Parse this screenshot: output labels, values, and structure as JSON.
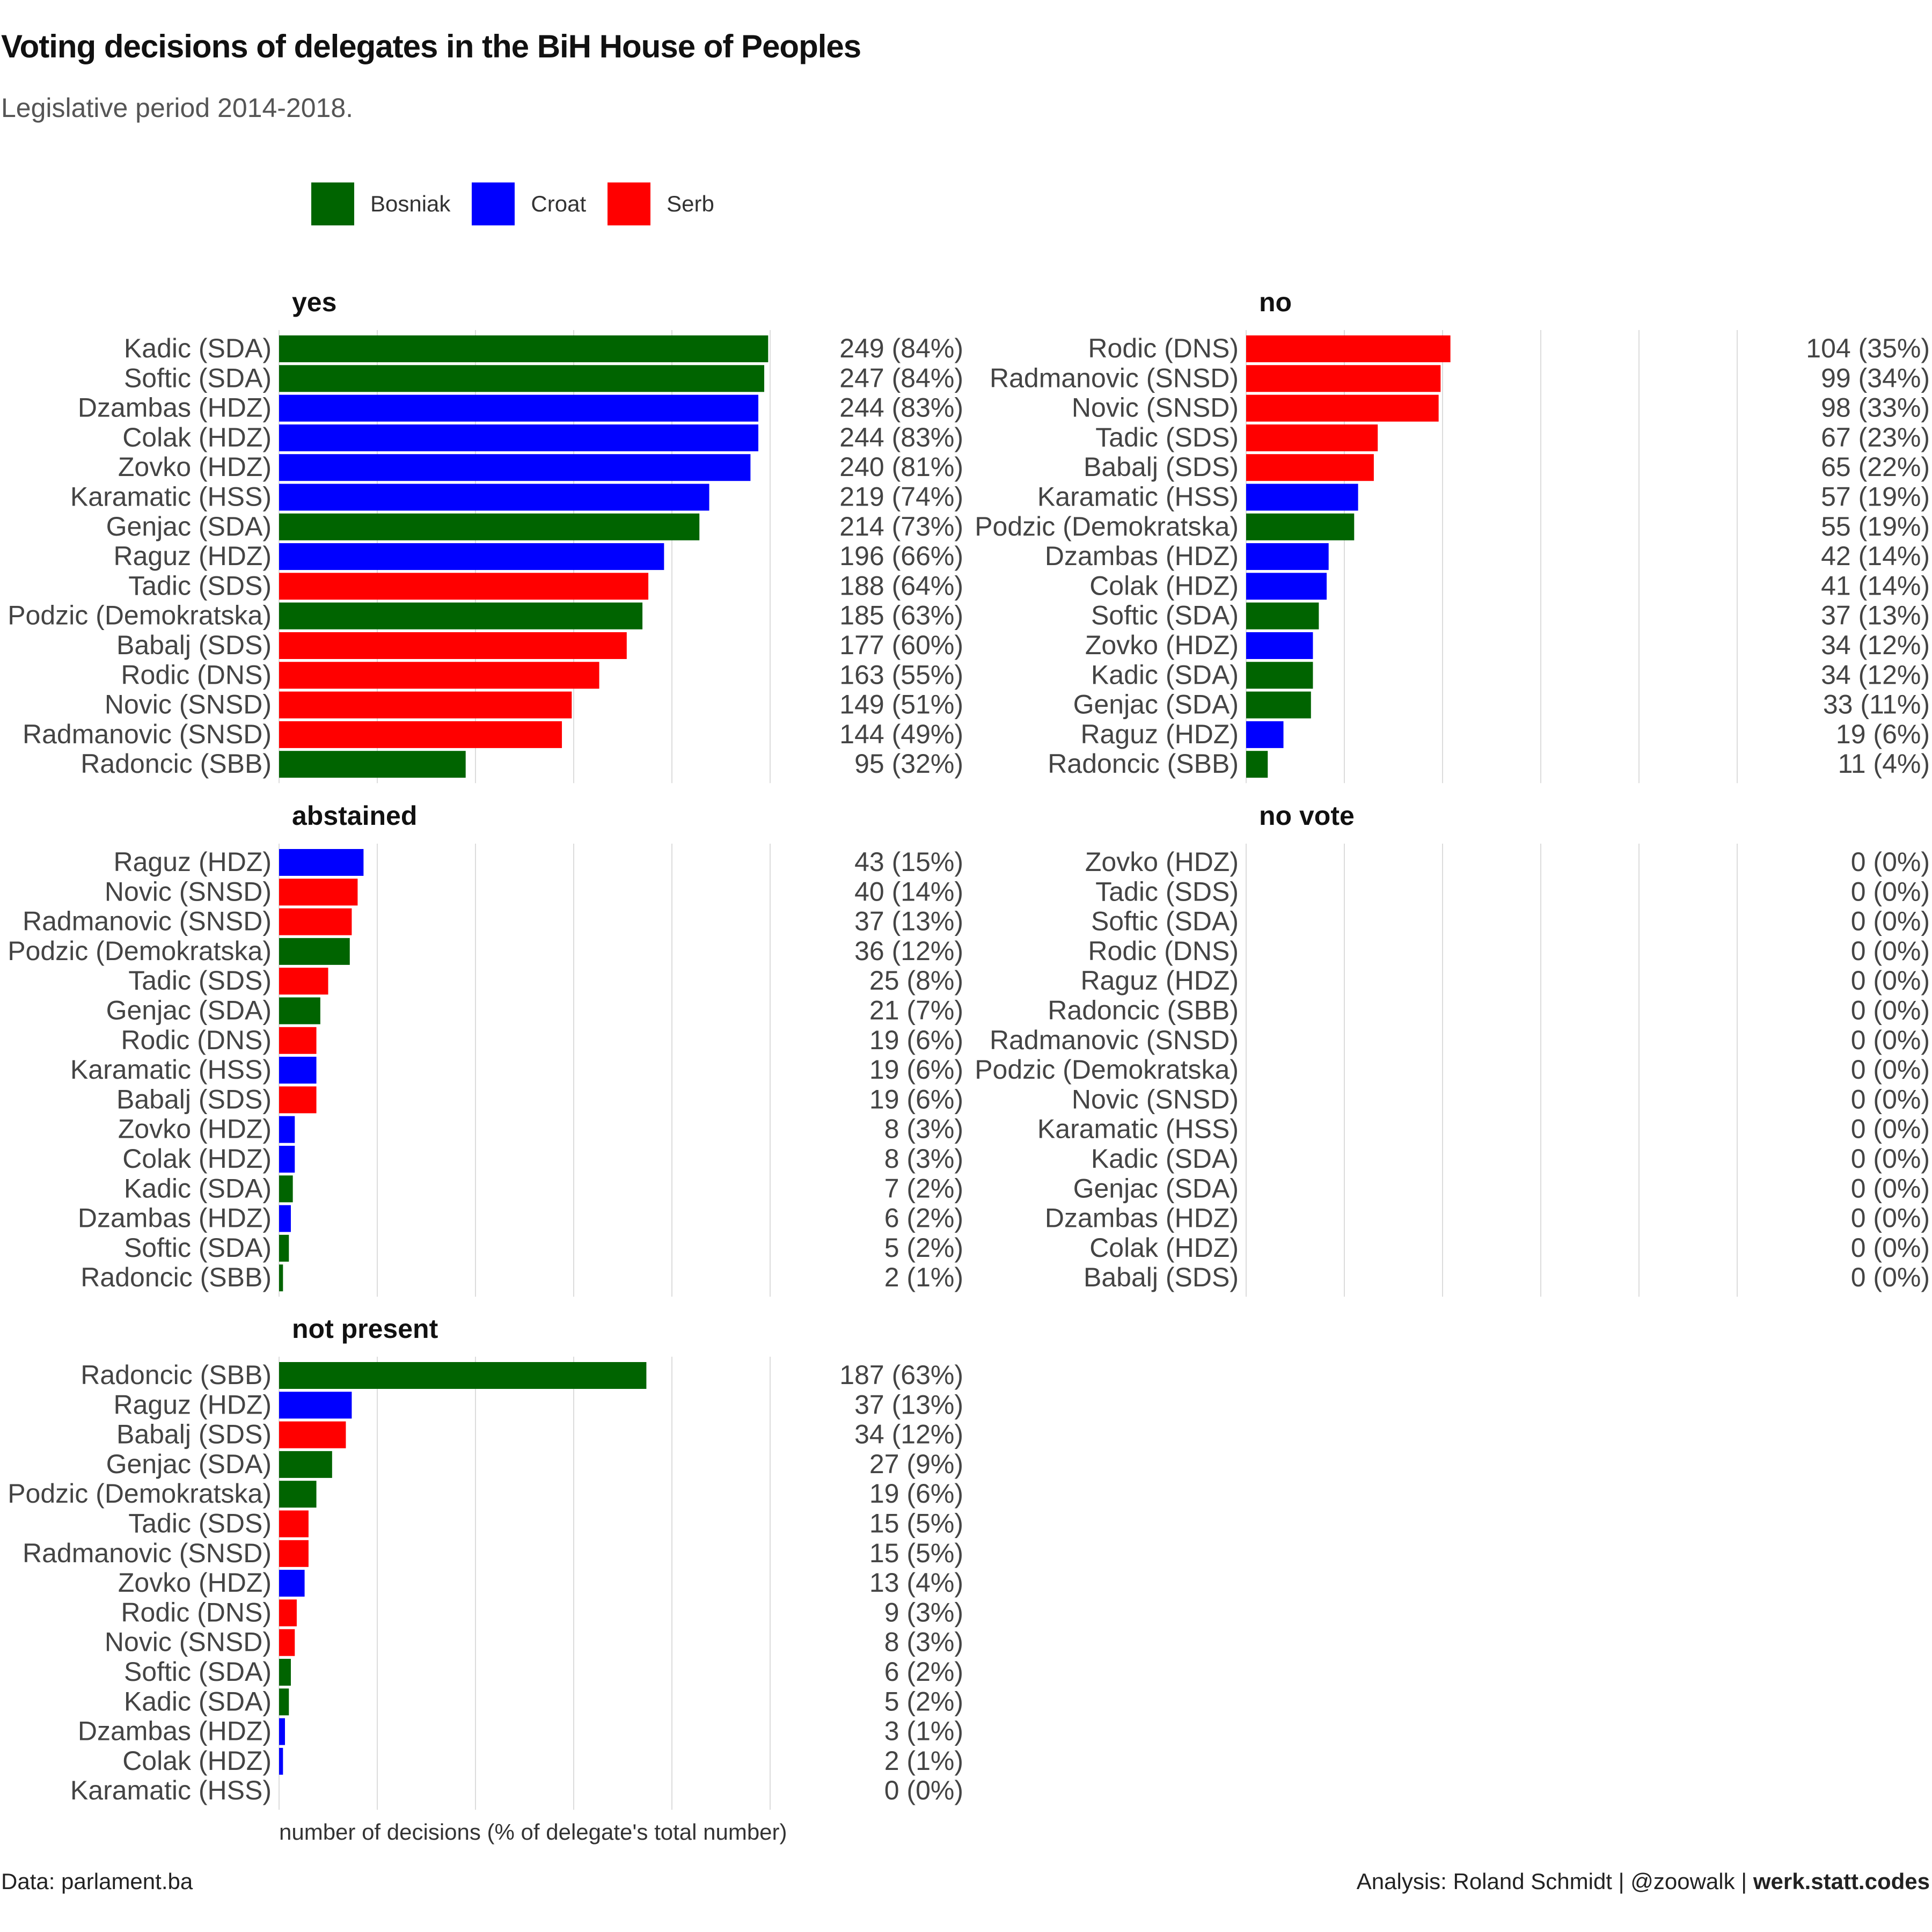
{
  "title": "Voting decisions of delegates in the BiH House of Peoples",
  "subtitle": "Legislative period 2014-2018.",
  "legend": [
    {
      "label": "Bosniak",
      "color": "#006400"
    },
    {
      "label": "Croat",
      "color": "#0000FF"
    },
    {
      "label": "Serb",
      "color": "#FF0000"
    }
  ],
  "footer": {
    "source": "Data: parlament.ba",
    "credit_prefix": "Analysis: Roland Schmidt | @zoowalk | ",
    "credit_bold": "werk.statt.codes"
  },
  "chart_data": {
    "type": "bar",
    "orientation": "horizontal",
    "xlabel": "number of decisions (% of delegate's total number)",
    "xlim": [
      0,
      250
    ],
    "grid": true,
    "legend_position": "top",
    "colors": {
      "Bosniak": "#006400",
      "Croat": "#0000FF",
      "Serb": "#FF0000"
    },
    "panels": [
      {
        "name": "yes",
        "rows": [
          {
            "delegate": "Kadic (SDA)",
            "group": "Bosniak",
            "value": 249,
            "label": "249 (84%)"
          },
          {
            "delegate": "Softic (SDA)",
            "group": "Bosniak",
            "value": 247,
            "label": "247 (84%)"
          },
          {
            "delegate": "Dzambas (HDZ)",
            "group": "Croat",
            "value": 244,
            "label": "244 (83%)"
          },
          {
            "delegate": "Colak (HDZ)",
            "group": "Croat",
            "value": 244,
            "label": "244 (83%)"
          },
          {
            "delegate": "Zovko (HDZ)",
            "group": "Croat",
            "value": 240,
            "label": "240 (81%)"
          },
          {
            "delegate": "Karamatic (HSS)",
            "group": "Croat",
            "value": 219,
            "label": "219 (74%)"
          },
          {
            "delegate": "Genjac (SDA)",
            "group": "Bosniak",
            "value": 214,
            "label": "214 (73%)"
          },
          {
            "delegate": "Raguz (HDZ)",
            "group": "Croat",
            "value": 196,
            "label": "196 (66%)"
          },
          {
            "delegate": "Tadic (SDS)",
            "group": "Serb",
            "value": 188,
            "label": "188 (64%)"
          },
          {
            "delegate": "Podzic (Demokratska)",
            "group": "Bosniak",
            "value": 185,
            "label": "185 (63%)"
          },
          {
            "delegate": "Babalj (SDS)",
            "group": "Serb",
            "value": 177,
            "label": "177 (60%)"
          },
          {
            "delegate": "Rodic (DNS)",
            "group": "Serb",
            "value": 163,
            "label": "163 (55%)"
          },
          {
            "delegate": "Novic (SNSD)",
            "group": "Serb",
            "value": 149,
            "label": "149 (51%)"
          },
          {
            "delegate": "Radmanovic (SNSD)",
            "group": "Serb",
            "value": 144,
            "label": "144 (49%)"
          },
          {
            "delegate": "Radoncic (SBB)",
            "group": "Bosniak",
            "value": 95,
            "label": "95 (32%)"
          }
        ]
      },
      {
        "name": "no",
        "rows": [
          {
            "delegate": "Rodic (DNS)",
            "group": "Serb",
            "value": 104,
            "label": "104 (35%)"
          },
          {
            "delegate": "Radmanovic (SNSD)",
            "group": "Serb",
            "value": 99,
            "label": "99 (34%)"
          },
          {
            "delegate": "Novic (SNSD)",
            "group": "Serb",
            "value": 98,
            "label": "98 (33%)"
          },
          {
            "delegate": "Tadic (SDS)",
            "group": "Serb",
            "value": 67,
            "label": "67 (23%)"
          },
          {
            "delegate": "Babalj (SDS)",
            "group": "Serb",
            "value": 65,
            "label": "65 (22%)"
          },
          {
            "delegate": "Karamatic (HSS)",
            "group": "Croat",
            "value": 57,
            "label": "57 (19%)"
          },
          {
            "delegate": "Podzic (Demokratska)",
            "group": "Bosniak",
            "value": 55,
            "label": "55 (19%)"
          },
          {
            "delegate": "Dzambas (HDZ)",
            "group": "Croat",
            "value": 42,
            "label": "42 (14%)"
          },
          {
            "delegate": "Colak (HDZ)",
            "group": "Croat",
            "value": 41,
            "label": "41 (14%)"
          },
          {
            "delegate": "Softic (SDA)",
            "group": "Bosniak",
            "value": 37,
            "label": "37 (13%)"
          },
          {
            "delegate": "Zovko (HDZ)",
            "group": "Croat",
            "value": 34,
            "label": "34 (12%)"
          },
          {
            "delegate": "Kadic (SDA)",
            "group": "Bosniak",
            "value": 34,
            "label": "34 (12%)"
          },
          {
            "delegate": "Genjac (SDA)",
            "group": "Bosniak",
            "value": 33,
            "label": "33 (11%)"
          },
          {
            "delegate": "Raguz (HDZ)",
            "group": "Croat",
            "value": 19,
            "label": "19 (6%)"
          },
          {
            "delegate": "Radoncic (SBB)",
            "group": "Bosniak",
            "value": 11,
            "label": "11 (4%)"
          }
        ]
      },
      {
        "name": "abstained",
        "rows": [
          {
            "delegate": "Raguz (HDZ)",
            "group": "Croat",
            "value": 43,
            "label": "43 (15%)"
          },
          {
            "delegate": "Novic (SNSD)",
            "group": "Serb",
            "value": 40,
            "label": "40 (14%)"
          },
          {
            "delegate": "Radmanovic (SNSD)",
            "group": "Serb",
            "value": 37,
            "label": "37 (13%)"
          },
          {
            "delegate": "Podzic (Demokratska)",
            "group": "Bosniak",
            "value": 36,
            "label": "36 (12%)"
          },
          {
            "delegate": "Tadic (SDS)",
            "group": "Serb",
            "value": 25,
            "label": "25 (8%)"
          },
          {
            "delegate": "Genjac (SDA)",
            "group": "Bosniak",
            "value": 21,
            "label": "21 (7%)"
          },
          {
            "delegate": "Rodic (DNS)",
            "group": "Serb",
            "value": 19,
            "label": "19 (6%)"
          },
          {
            "delegate": "Karamatic (HSS)",
            "group": "Croat",
            "value": 19,
            "label": "19 (6%)"
          },
          {
            "delegate": "Babalj (SDS)",
            "group": "Serb",
            "value": 19,
            "label": "19 (6%)"
          },
          {
            "delegate": "Zovko (HDZ)",
            "group": "Croat",
            "value": 8,
            "label": "8 (3%)"
          },
          {
            "delegate": "Colak (HDZ)",
            "group": "Croat",
            "value": 8,
            "label": "8 (3%)"
          },
          {
            "delegate": "Kadic (SDA)",
            "group": "Bosniak",
            "value": 7,
            "label": "7 (2%)"
          },
          {
            "delegate": "Dzambas (HDZ)",
            "group": "Croat",
            "value": 6,
            "label": "6 (2%)"
          },
          {
            "delegate": "Softic (SDA)",
            "group": "Bosniak",
            "value": 5,
            "label": "5 (2%)"
          },
          {
            "delegate": "Radoncic (SBB)",
            "group": "Bosniak",
            "value": 2,
            "label": "2 (1%)"
          }
        ]
      },
      {
        "name": "no vote",
        "rows": [
          {
            "delegate": "Zovko (HDZ)",
            "group": "Croat",
            "value": 0,
            "label": "0 (0%)"
          },
          {
            "delegate": "Tadic (SDS)",
            "group": "Serb",
            "value": 0,
            "label": "0 (0%)"
          },
          {
            "delegate": "Softic (SDA)",
            "group": "Bosniak",
            "value": 0,
            "label": "0 (0%)"
          },
          {
            "delegate": "Rodic (DNS)",
            "group": "Serb",
            "value": 0,
            "label": "0 (0%)"
          },
          {
            "delegate": "Raguz (HDZ)",
            "group": "Croat",
            "value": 0,
            "label": "0 (0%)"
          },
          {
            "delegate": "Radoncic (SBB)",
            "group": "Bosniak",
            "value": 0,
            "label": "0 (0%)"
          },
          {
            "delegate": "Radmanovic (SNSD)",
            "group": "Serb",
            "value": 0,
            "label": "0 (0%)"
          },
          {
            "delegate": "Podzic (Demokratska)",
            "group": "Bosniak",
            "value": 0,
            "label": "0 (0%)"
          },
          {
            "delegate": "Novic (SNSD)",
            "group": "Serb",
            "value": 0,
            "label": "0 (0%)"
          },
          {
            "delegate": "Karamatic (HSS)",
            "group": "Croat",
            "value": 0,
            "label": "0 (0%)"
          },
          {
            "delegate": "Kadic (SDA)",
            "group": "Bosniak",
            "value": 0,
            "label": "0 (0%)"
          },
          {
            "delegate": "Genjac (SDA)",
            "group": "Bosniak",
            "value": 0,
            "label": "0 (0%)"
          },
          {
            "delegate": "Dzambas (HDZ)",
            "group": "Croat",
            "value": 0,
            "label": "0 (0%)"
          },
          {
            "delegate": "Colak (HDZ)",
            "group": "Croat",
            "value": 0,
            "label": "0 (0%)"
          },
          {
            "delegate": "Babalj (SDS)",
            "group": "Serb",
            "value": 0,
            "label": "0 (0%)"
          }
        ]
      },
      {
        "name": "not present",
        "rows": [
          {
            "delegate": "Radoncic (SBB)",
            "group": "Bosniak",
            "value": 187,
            "label": "187 (63%)"
          },
          {
            "delegate": "Raguz (HDZ)",
            "group": "Croat",
            "value": 37,
            "label": "37 (13%)"
          },
          {
            "delegate": "Babalj (SDS)",
            "group": "Serb",
            "value": 34,
            "label": "34 (12%)"
          },
          {
            "delegate": "Genjac (SDA)",
            "group": "Bosniak",
            "value": 27,
            "label": "27 (9%)"
          },
          {
            "delegate": "Podzic (Demokratska)",
            "group": "Bosniak",
            "value": 19,
            "label": "19 (6%)"
          },
          {
            "delegate": "Tadic (SDS)",
            "group": "Serb",
            "value": 15,
            "label": "15 (5%)"
          },
          {
            "delegate": "Radmanovic (SNSD)",
            "group": "Serb",
            "value": 15,
            "label": "15 (5%)"
          },
          {
            "delegate": "Zovko (HDZ)",
            "group": "Croat",
            "value": 13,
            "label": "13 (4%)"
          },
          {
            "delegate": "Rodic (DNS)",
            "group": "Serb",
            "value": 9,
            "label": "9 (3%)"
          },
          {
            "delegate": "Novic (SNSD)",
            "group": "Serb",
            "value": 8,
            "label": "8 (3%)"
          },
          {
            "delegate": "Softic (SDA)",
            "group": "Bosniak",
            "value": 6,
            "label": "6 (2%)"
          },
          {
            "delegate": "Kadic (SDA)",
            "group": "Bosniak",
            "value": 5,
            "label": "5 (2%)"
          },
          {
            "delegate": "Dzambas (HDZ)",
            "group": "Croat",
            "value": 3,
            "label": "3 (1%)"
          },
          {
            "delegate": "Colak (HDZ)",
            "group": "Croat",
            "value": 2,
            "label": "2 (1%)"
          },
          {
            "delegate": "Karamatic (HSS)",
            "group": "Croat",
            "value": 0,
            "label": "0 (0%)"
          }
        ]
      }
    ]
  }
}
